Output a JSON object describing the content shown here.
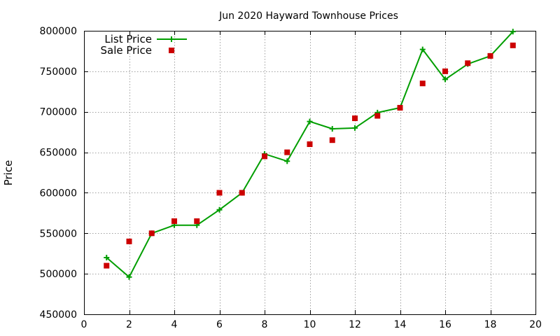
{
  "chart_data": {
    "type": "line",
    "title": "Jun 2020 Hayward Townhouse Prices",
    "xlabel": "",
    "ylabel": "Price",
    "xlim": [
      0,
      20
    ],
    "ylim": [
      450000,
      800000
    ],
    "xticks": [
      0,
      2,
      4,
      6,
      8,
      10,
      12,
      14,
      16,
      18,
      20
    ],
    "yticks": [
      450000,
      500000,
      550000,
      600000,
      650000,
      700000,
      750000,
      800000
    ],
    "grid": true,
    "legend_position": "top-left",
    "x": [
      1,
      2,
      3,
      4,
      5,
      6,
      7,
      8,
      9,
      10,
      11,
      12,
      13,
      14,
      15,
      16,
      17,
      18,
      19
    ],
    "series": [
      {
        "name": "List Price",
        "style": "line-with-plus-markers",
        "color": "#009e00",
        "values": [
          520000,
          496000,
          550000,
          560000,
          560000,
          579000,
          600000,
          648000,
          639000,
          688000,
          679000,
          680000,
          699000,
          705000,
          777000,
          740000,
          759000,
          769000,
          799000
        ]
      },
      {
        "name": "Sale Price",
        "style": "square-markers",
        "color": "#cc0000",
        "values": [
          510000,
          540000,
          550000,
          565000,
          565000,
          600000,
          600000,
          645000,
          650000,
          660000,
          665000,
          692000,
          695000,
          705000,
          735000,
          750000,
          760000,
          769000,
          782000
        ]
      }
    ]
  }
}
